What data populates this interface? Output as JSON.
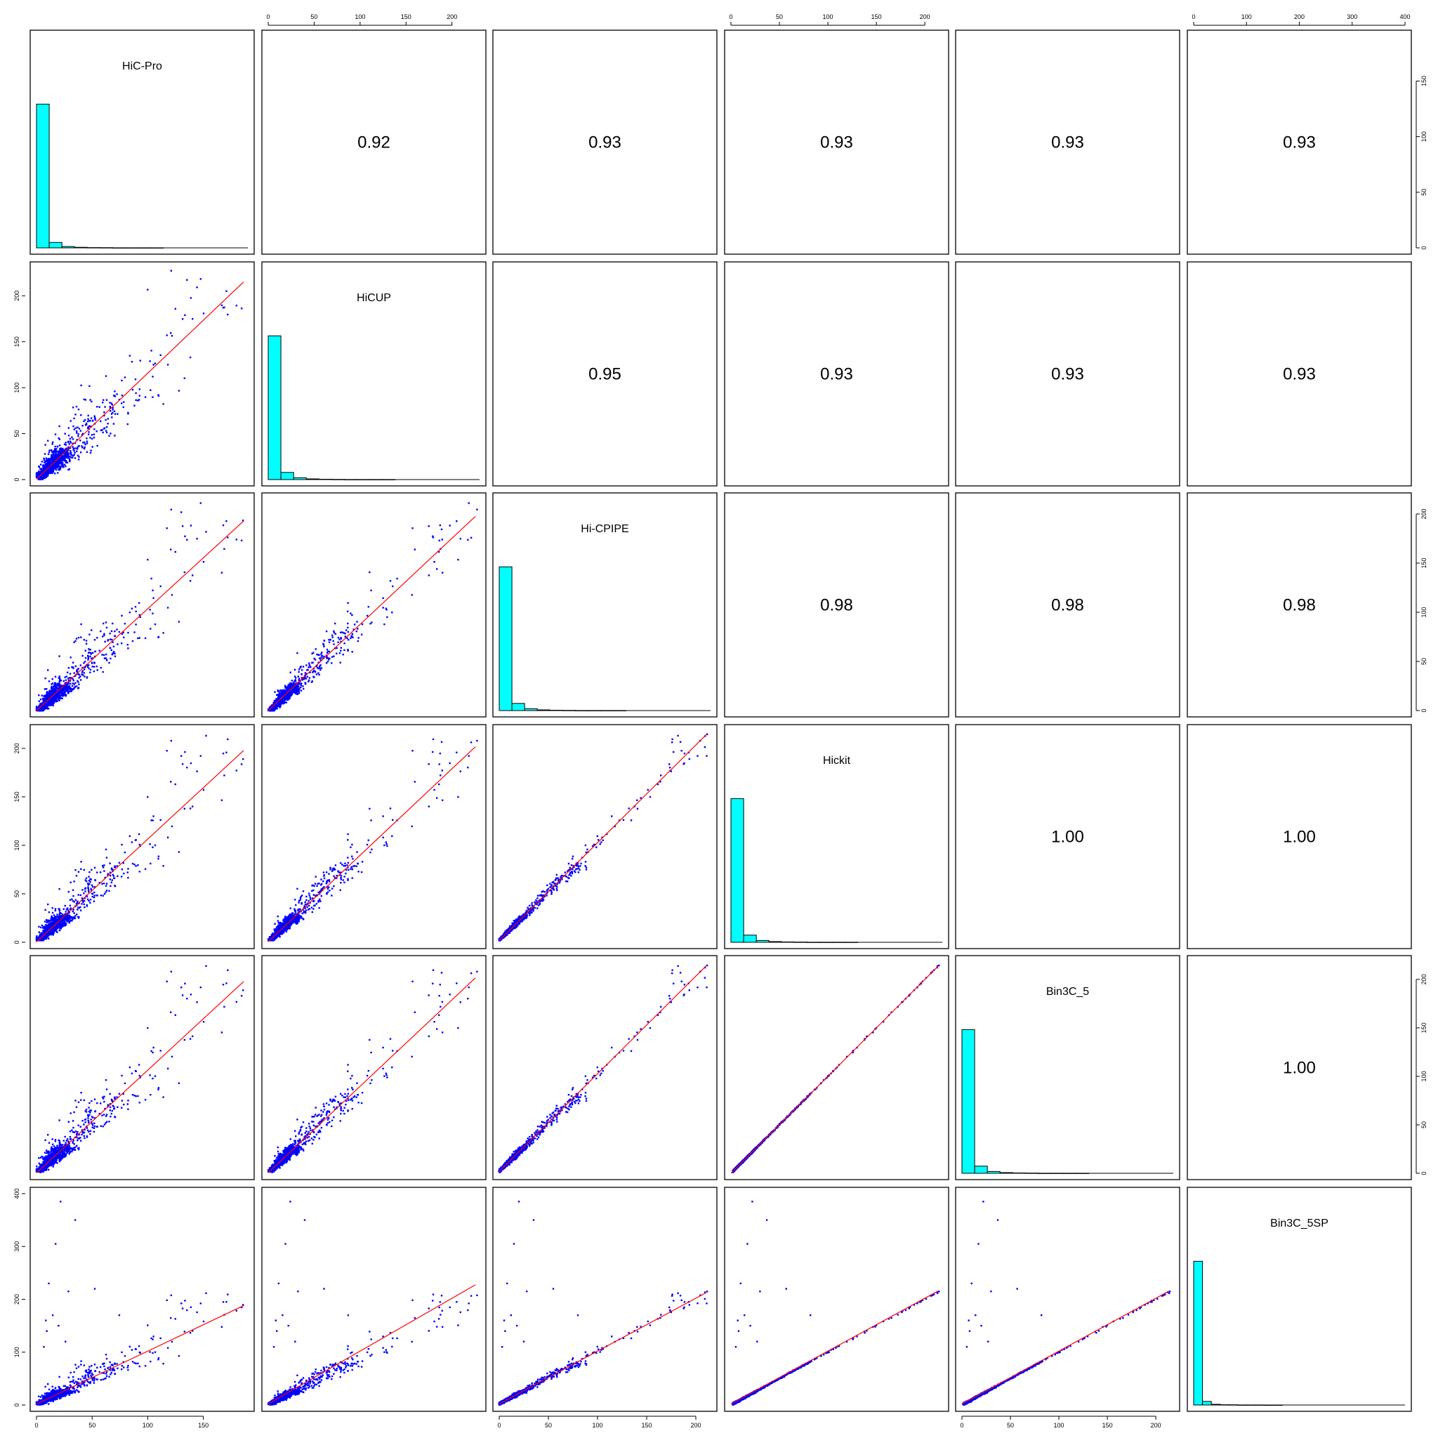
{
  "chart_data": {
    "type": "scatter",
    "variables": [
      "HiC-Pro",
      "HiCUP",
      "Hi-CPIPE",
      "Hickit",
      "Bin3C_5",
      "Bin3C_5SP"
    ],
    "correlations": [
      {
        "row": "HiC-Pro",
        "col": "HiCUP",
        "value": "0.92"
      },
      {
        "row": "HiC-Pro",
        "col": "Hi-CPIPE",
        "value": "0.93"
      },
      {
        "row": "HiC-Pro",
        "col": "Hickit",
        "value": "0.93"
      },
      {
        "row": "HiC-Pro",
        "col": "Bin3C_5",
        "value": "0.93"
      },
      {
        "row": "HiC-Pro",
        "col": "Bin3C_5SP",
        "value": "0.93"
      },
      {
        "row": "HiCUP",
        "col": "Hi-CPIPE",
        "value": "0.95"
      },
      {
        "row": "HiCUP",
        "col": "Hickit",
        "value": "0.93"
      },
      {
        "row": "HiCUP",
        "col": "Bin3C_5",
        "value": "0.93"
      },
      {
        "row": "HiCUP",
        "col": "Bin3C_5SP",
        "value": "0.93"
      },
      {
        "row": "Hi-CPIPE",
        "col": "Hickit",
        "value": "0.98"
      },
      {
        "row": "Hi-CPIPE",
        "col": "Bin3C_5",
        "value": "0.98"
      },
      {
        "row": "Hi-CPIPE",
        "col": "Bin3C_5SP",
        "value": "0.98"
      },
      {
        "row": "Hickit",
        "col": "Bin3C_5",
        "value": "1.00"
      },
      {
        "row": "Hickit",
        "col": "Bin3C_5SP",
        "value": "1.00"
      },
      {
        "row": "Bin3C_5",
        "col": "Bin3C_5SP",
        "value": "1.00"
      }
    ],
    "ranges": {
      "HiC-Pro": [
        0,
        190
      ],
      "HiCUP": [
        0,
        230
      ],
      "Hi-CPIPE": [
        0,
        215
      ],
      "Hickit": [
        0,
        218
      ],
      "Bin3C_5": [
        0,
        218
      ],
      "Bin3C_5SP": [
        0,
        400
      ]
    },
    "histogram_counts": [
      [
        160,
        6,
        1.5,
        0.6,
        0.3,
        0.2,
        0.1,
        0.1,
        0.1,
        0.05
      ],
      [
        160,
        8,
        2,
        0.8,
        0.4,
        0.2,
        0.1,
        0.1,
        0.05,
        0.05
      ],
      [
        160,
        8,
        2,
        0.8,
        0.4,
        0.2,
        0.1,
        0.1,
        0.05,
        0.05
      ],
      [
        160,
        8,
        2,
        0.8,
        0.4,
        0.2,
        0.1,
        0.1,
        0.05,
        0.05
      ],
      [
        160,
        8,
        2,
        0.8,
        0.4,
        0.2,
        0.1,
        0.1,
        0.05,
        0.05
      ],
      [
        160,
        4,
        0.8,
        0.3,
        0.2,
        0.1,
        0.05,
        0.05,
        0.02,
        0.02
      ]
    ],
    "axes": {
      "top": [
        {
          "panel": 1,
          "ticks": [
            0,
            50,
            100,
            150,
            200
          ],
          "range": [
            0,
            230
          ]
        },
        {
          "panel": 3,
          "ticks": [
            0,
            50,
            100,
            150,
            200
          ],
          "range": [
            0,
            218
          ]
        },
        {
          "panel": 5,
          "ticks": [
            0,
            100,
            200,
            300,
            400
          ],
          "range": [
            0,
            400
          ]
        }
      ],
      "bottom": [
        {
          "panel": 0,
          "ticks": [
            0,
            50,
            100,
            150
          ],
          "range": [
            0,
            190
          ]
        },
        {
          "panel": 2,
          "ticks": [
            0,
            50,
            100,
            150,
            200
          ],
          "range": [
            0,
            215
          ]
        },
        {
          "panel": 4,
          "ticks": [
            0,
            50,
            100,
            150,
            200
          ],
          "range": [
            0,
            218
          ]
        }
      ],
      "left": [
        {
          "panel": 1,
          "ticks": [
            0,
            50,
            100,
            150,
            200
          ],
          "range": [
            0,
            230
          ]
        },
        {
          "panel": 3,
          "ticks": [
            0,
            50,
            100,
            150,
            200
          ],
          "range": [
            0,
            218
          ]
        },
        {
          "panel": 5,
          "ticks": [
            0,
            100,
            200,
            300,
            400
          ],
          "range": [
            0,
            400
          ]
        }
      ],
      "right": [
        {
          "panel": 0,
          "ticks": [
            0,
            50,
            100,
            150
          ],
          "range": [
            0,
            190
          ]
        },
        {
          "panel": 2,
          "ticks": [
            0,
            50,
            100,
            150,
            200
          ],
          "range": [
            0,
            215
          ]
        },
        {
          "panel": 4,
          "ticks": [
            0,
            50,
            100,
            150,
            200
          ],
          "range": [
            0,
            218
          ]
        }
      ]
    },
    "colors": {
      "points": "#0000ff",
      "fit_line": "#ff0000",
      "histogram_fill": "#00ffff",
      "frame": "#000000"
    },
    "layout_grid": "6x6 pairs matrix: histograms on diagonal, scatter plots with red smoothed fit below diagonal, correlation values above diagonal"
  }
}
